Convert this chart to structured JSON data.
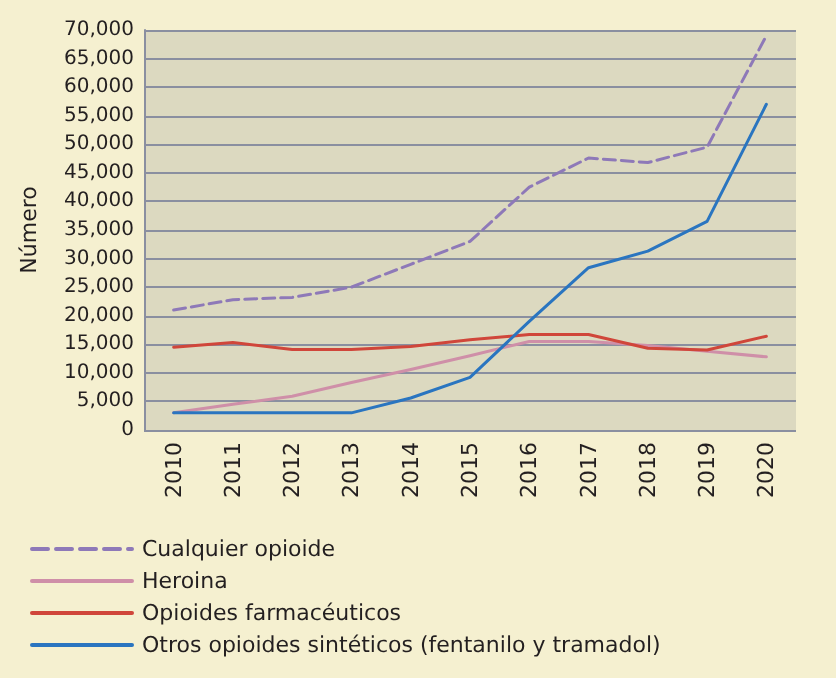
{
  "chart_data": {
    "type": "line",
    "ylabel": "Número",
    "categories": [
      "2010",
      "2011",
      "2012",
      "2013",
      "2014",
      "2015",
      "2016",
      "2017",
      "2018",
      "2019",
      "2020"
    ],
    "series": [
      {
        "name": "Cualquier opioide",
        "color": "#8e79b8",
        "line_style": "dashed",
        "values": [
          21000,
          22800,
          23200,
          25000,
          29000,
          33000,
          42500,
          47600,
          46800,
          49500,
          69000
        ]
      },
      {
        "name": "Heroina",
        "color": "#cf8fa8",
        "values": [
          3000,
          4500,
          5900,
          8300,
          10600,
          13000,
          15500,
          15500,
          14800,
          13800,
          12800
        ]
      },
      {
        "name": "Opioides farmacéuticos",
        "color": "#d0463a",
        "values": [
          14500,
          15300,
          14100,
          14100,
          14600,
          15800,
          16700,
          16700,
          14300,
          14000,
          16400
        ]
      },
      {
        "name": "Otros opioides sintéticos (fentanilo y tramadol)",
        "color": "#2a75c0",
        "values": [
          3000,
          3000,
          3000,
          3000,
          5600,
          9200,
          19000,
          28400,
          31300,
          36500,
          57000
        ]
      }
    ],
    "ylim": [
      0,
      70000
    ],
    "yticks": [
      0,
      {
        "value": 5000,
        "label": "5,000"
      },
      {
        "value": 10000,
        "label": "10,000"
      },
      {
        "value": 15000,
        "label": "15,000"
      },
      {
        "value": 20000,
        "label": "20,000"
      },
      {
        "value": 25000,
        "label": "25,000"
      },
      {
        "value": 30000,
        "label": "30,000"
      },
      {
        "value": 35000,
        "label": "35,000"
      },
      {
        "value": 40000,
        "label": "40,000"
      },
      {
        "value": 45000,
        "label": "45,000"
      },
      {
        "value": 50000,
        "label": "50,000"
      },
      {
        "value": 55000,
        "label": "55,000"
      },
      {
        "value": 60000,
        "label": "60,000"
      },
      {
        "value": 65000,
        "label": "65,000"
      },
      {
        "value": 70000,
        "label": "70,000"
      }
    ],
    "grid": "y",
    "legend": "bottom left",
    "marker": "none",
    "line_style": "solid"
  }
}
